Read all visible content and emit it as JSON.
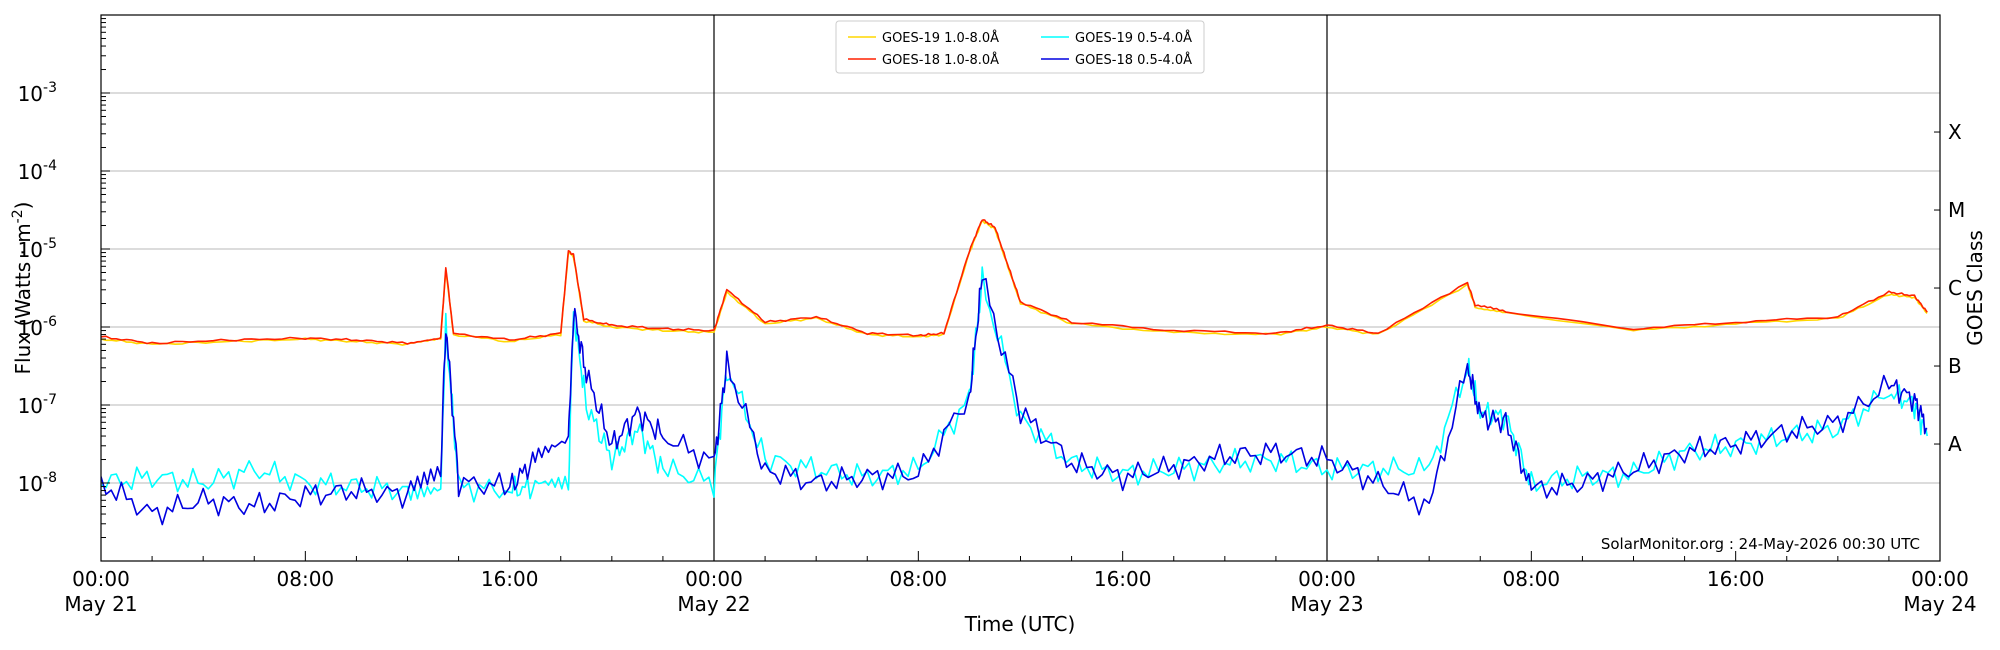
{
  "chart_data": {
    "type": "line",
    "title": "",
    "xlabel": "Time (UTC)",
    "ylabel": "Flux (Watts · m",
    "ylabel_sup": "-2",
    "ylabel_close": ")",
    "y2label": "GOES Class",
    "yscale": "log",
    "ylim": [
      1e-09,
      0.01
    ],
    "xlim_hours": [
      0,
      72
    ],
    "y_ticks": [
      {
        "value": 1e-08,
        "base": "10",
        "exp": "-8"
      },
      {
        "value": 1e-07,
        "base": "10",
        "exp": "-7"
      },
      {
        "value": 1e-06,
        "base": "10",
        "exp": "-6"
      },
      {
        "value": 1e-05,
        "base": "10",
        "exp": "-5"
      },
      {
        "value": 0.0001,
        "base": "10",
        "exp": "-4"
      },
      {
        "value": 0.001,
        "base": "10",
        "exp": "-3"
      }
    ],
    "x_ticks": [
      {
        "hour": 0,
        "time": "00:00",
        "date": "May 21"
      },
      {
        "hour": 8,
        "time": "08:00",
        "date": ""
      },
      {
        "hour": 16,
        "time": "16:00",
        "date": ""
      },
      {
        "hour": 24,
        "time": "00:00",
        "date": "May 22"
      },
      {
        "hour": 32,
        "time": "08:00",
        "date": ""
      },
      {
        "hour": 40,
        "time": "16:00",
        "date": ""
      },
      {
        "hour": 48,
        "time": "00:00",
        "date": "May 23"
      },
      {
        "hour": 56,
        "time": "08:00",
        "date": ""
      },
      {
        "hour": 64,
        "time": "16:00",
        "date": ""
      },
      {
        "hour": 72,
        "time": "00:00",
        "date": "May 24"
      }
    ],
    "day_boundaries_hours": [
      24,
      48
    ],
    "class_levels": [
      {
        "label": "A",
        "value": 3.16e-08
      },
      {
        "label": "B",
        "value": 3.16e-07
      },
      {
        "label": "C",
        "value": 3.16e-06
      },
      {
        "label": "M",
        "value": 3.16e-05
      },
      {
        "label": "X",
        "value": 0.000316
      }
    ],
    "grid": "horizontal at decades",
    "legend": {
      "position": "top-center",
      "columns": 2
    },
    "credit": "SolarMonitor.org : 24-May-2026 00:30 UTC",
    "series": [
      {
        "name": "GOES-19 1.0-8.0Å",
        "color": "#FFD700",
        "x_hours": [
          0,
          2,
          5,
          8,
          10,
          12,
          13.3,
          13.5,
          13.8,
          16,
          18,
          18.3,
          18.5,
          18.9,
          20,
          22,
          24,
          24.5,
          26,
          28,
          30,
          32,
          33,
          34,
          34.5,
          35,
          35.5,
          36,
          38,
          42,
          46,
          48,
          50,
          53.5,
          53.8,
          55,
          60,
          64,
          68,
          70,
          71,
          71.5
        ],
        "values": [
          7e-07,
          6e-07,
          6.5e-07,
          7e-07,
          6.5e-07,
          6e-07,
          7e-07,
          5.5e-06,
          8e-07,
          6.5e-07,
          8e-07,
          9e-06,
          8e-06,
          1.2e-06,
          1e-06,
          9e-07,
          8.5e-07,
          2.8e-06,
          1.1e-06,
          1.3e-06,
          8e-07,
          7.5e-07,
          8e-07,
          9e-06,
          2.3e-05,
          1.8e-05,
          6e-06,
          2e-06,
          1.1e-06,
          8.5e-07,
          8e-07,
          1e-06,
          8e-07,
          3.5e-06,
          1.8e-06,
          1.5e-06,
          9e-07,
          1.1e-06,
          1.3e-06,
          2.6e-06,
          2.4e-06,
          1.5e-06
        ]
      },
      {
        "name": "GOES-18 1.0-8.0Å",
        "color": "#FF2000",
        "x_hours": [
          0,
          2,
          5,
          8,
          10,
          12,
          13.3,
          13.5,
          13.8,
          16,
          18,
          18.3,
          18.5,
          18.9,
          20,
          22,
          24,
          24.5,
          26,
          28,
          30,
          32,
          33,
          34,
          34.5,
          35,
          35.5,
          36,
          38,
          42,
          46,
          48,
          50,
          53.5,
          53.8,
          55,
          60,
          64,
          68,
          70,
          71,
          71.5
        ],
        "values": [
          7.5e-07,
          6.2e-07,
          6.8e-07,
          7.2e-07,
          6.8e-07,
          6.2e-07,
          7.2e-07,
          5.8e-06,
          8.3e-07,
          6.8e-07,
          8.3e-07,
          9.5e-06,
          8.4e-06,
          1.25e-06,
          1.05e-06,
          9.5e-07,
          9e-07,
          3e-06,
          1.15e-06,
          1.35e-06,
          8.3e-07,
          7.8e-07,
          8.3e-07,
          9.5e-06,
          2.4e-05,
          1.9e-05,
          6.3e-06,
          2.1e-06,
          1.15e-06,
          9e-07,
          8.3e-07,
          1.05e-06,
          8.3e-07,
          3.7e-06,
          1.9e-06,
          1.6e-06,
          9.5e-07,
          1.15e-06,
          1.35e-06,
          2.8e-06,
          2.5e-06,
          1.55e-06
        ]
      },
      {
        "name": "GOES-19 0.5-4.0Å",
        "color": "#00FFFF",
        "x_hours": [
          0,
          2,
          4,
          6,
          8,
          10,
          12,
          13.3,
          13.5,
          14,
          16,
          17,
          18.3,
          18.5,
          19,
          20,
          21,
          22,
          24,
          24.5,
          26,
          28,
          30,
          32,
          34,
          34.5,
          36,
          38,
          40,
          42,
          44,
          46,
          48,
          50,
          52,
          53.5,
          54,
          55,
          56,
          58,
          60,
          62,
          64,
          66,
          68,
          70,
          71,
          71.5
        ],
        "values": [
          1e-08,
          1.2e-08,
          1e-08,
          1.5e-08,
          1e-08,
          9e-09,
          8e-09,
          1e-08,
          1e-06,
          9e-09,
          8e-09,
          9e-09,
          1e-08,
          1.5e-06,
          1e-07,
          2e-08,
          5e-08,
          1.5e-08,
          1e-08,
          3e-07,
          2e-08,
          1.5e-08,
          1.2e-08,
          1.5e-08,
          1.2e-07,
          4e-06,
          7e-08,
          1.8e-08,
          1.3e-08,
          1.5e-08,
          1.8e-08,
          2e-08,
          1.5e-08,
          1.5e-08,
          1.5e-08,
          3e-07,
          8e-08,
          7e-08,
          1e-08,
          1.2e-08,
          1.3e-08,
          2.5e-08,
          3e-08,
          4e-08,
          5e-08,
          1.5e-07,
          1e-07,
          4e-08
        ]
      },
      {
        "name": "GOES-18 0.5-4.0Å",
        "color": "#0000E0",
        "x_hours": [
          0,
          2,
          4,
          6,
          8,
          10,
          12,
          13.3,
          13.5,
          14,
          16,
          17,
          18.3,
          18.5,
          19,
          20,
          21,
          22,
          24,
          24.5,
          26,
          28,
          30,
          32,
          34,
          34.5,
          36,
          38,
          40,
          42,
          44,
          46,
          48,
          50,
          52,
          53.5,
          54,
          55,
          56,
          58,
          60,
          62,
          64,
          66,
          68,
          70,
          71,
          71.5
        ],
        "values": [
          1e-08,
          4e-09,
          6e-09,
          5e-09,
          7e-09,
          8e-09,
          7e-09,
          1.2e-08,
          1.1e-06,
          1e-08,
          9e-09,
          2e-08,
          3e-08,
          1.6e-06,
          2.5e-07,
          3e-08,
          8e-08,
          4e-08,
          1.8e-08,
          3.5e-07,
          1.5e-08,
          1e-08,
          1.2e-08,
          1.3e-08,
          1.3e-07,
          4.3e-06,
          8e-08,
          1.8e-08,
          1.2e-08,
          1.6e-08,
          2.2e-08,
          2.5e-08,
          2e-08,
          1e-08,
          5e-09,
          3.2e-07,
          7e-08,
          6e-08,
          8e-09,
          1e-08,
          1.5e-08,
          2.5e-08,
          3.2e-08,
          4.5e-08,
          6e-08,
          1.8e-07,
          1.2e-07,
          5e-08
        ]
      }
    ]
  }
}
